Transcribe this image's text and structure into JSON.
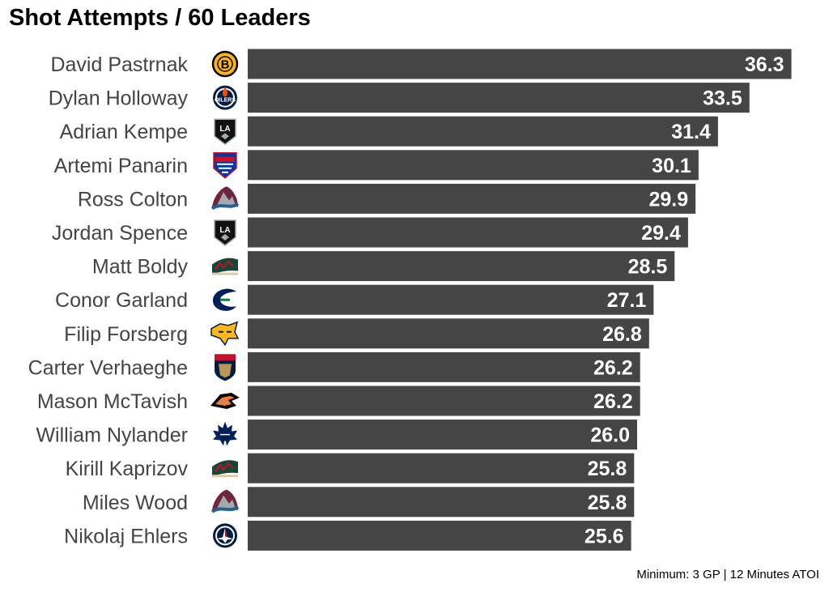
{
  "chart_data": {
    "type": "bar",
    "orientation": "horizontal",
    "title": "Shot Attempts / 60 Leaders",
    "caption": "Minimum: 3 GP | 12 Minutes ATOI",
    "xlim": [
      0,
      37
    ],
    "grid": false,
    "bar_color": "#454545",
    "categories": [
      "David Pastrnak",
      "Dylan Holloway",
      "Adrian Kempe",
      "Artemi Panarin",
      "Ross Colton",
      "Jordan Spence",
      "Matt Boldy",
      "Conor Garland",
      "Filip Forsberg",
      "Carter Verhaeghe",
      "Mason McTavish",
      "William Nylander",
      "Kirill Kaprizov",
      "Miles Wood",
      "Nikolaj Ehlers"
    ],
    "values": [
      36.3,
      33.5,
      31.4,
      30.1,
      29.9,
      29.4,
      28.5,
      27.1,
      26.8,
      26.2,
      26.2,
      26.0,
      25.8,
      25.8,
      25.6
    ],
    "value_labels": [
      "36.3",
      "33.5",
      "31.4",
      "30.1",
      "29.9",
      "29.4",
      "28.5",
      "27.1",
      "26.8",
      "26.2",
      "26.2",
      "26.0",
      "25.8",
      "25.8",
      "25.6"
    ],
    "team_logos": [
      "bruins-logo-icon",
      "oilers-logo-icon",
      "kings-logo-icon",
      "rangers-logo-icon",
      "avalanche-logo-icon",
      "kings-logo-icon",
      "wild-logo-icon",
      "canucks-logo-icon",
      "predators-logo-icon",
      "panthers-logo-icon",
      "ducks-logo-icon",
      "maple-leafs-logo-icon",
      "wild-logo-icon",
      "avalanche-logo-icon",
      "jets-logo-icon"
    ]
  }
}
